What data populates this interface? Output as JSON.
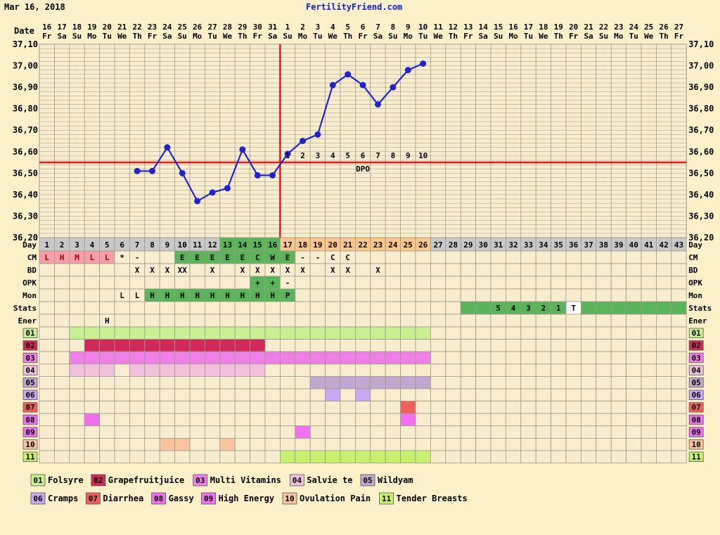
{
  "header": {
    "date": "Mar 16, 2018",
    "site": "FertilityFriend.com"
  },
  "rows": {
    "date_label": "Date",
    "day_label": "Day",
    "cm_label": "CM",
    "bd_label": "BD",
    "opk_label": "OPK",
    "mon_label": "Mon",
    "stats_label": "Stats",
    "ener_label": "Ener",
    "dpo_label": "DPO"
  },
  "colors": {
    "page_bg": "#fbf0c8",
    "cell_bg": "#f8edcf",
    "grid_line": "#9c9a88",
    "temp_line": "#2323cc",
    "coverline": "#e11a1a",
    "day_bg": "#c8c8c8",
    "fertile_green": "#5ab55a",
    "luteal_orange": "#f9c78e",
    "menses_pink": "#f5a0a8",
    "title_blue": "#1020d0"
  },
  "chart_data": {
    "type": "line",
    "title": "",
    "xlabel": "",
    "ylabel": "",
    "ylim": [
      36.2,
      37.1
    ],
    "y_ticks": [
      "37,10",
      "37,00",
      "36,90",
      "36,80",
      "36,70",
      "36,60",
      "36,50",
      "36,40",
      "36,30",
      "36,20"
    ],
    "coverline": 36.55,
    "ovulation_cycle_day": 16,
    "cycle_days": [
      1,
      2,
      3,
      4,
      5,
      6,
      7,
      8,
      9,
      10,
      11,
      12,
      13,
      14,
      15,
      16,
      17,
      18,
      19,
      20,
      21,
      22,
      23,
      24,
      25,
      26,
      27,
      28,
      29,
      30,
      31,
      32,
      33,
      34,
      35,
      36,
      37,
      38,
      39,
      40,
      41,
      42,
      43
    ],
    "date_numbers": [
      "16",
      "17",
      "18",
      "19",
      "20",
      "21",
      "22",
      "23",
      "24",
      "25",
      "26",
      "27",
      "28",
      "29",
      "30",
      "31",
      "1",
      "2",
      "3",
      "4",
      "5",
      "6",
      "7",
      "8",
      "9",
      "10",
      "11",
      "12",
      "13",
      "14",
      "15",
      "16",
      "17",
      "18",
      "19",
      "20",
      "21",
      "22",
      "23",
      "24",
      "25",
      "26",
      "27"
    ],
    "weekdays": [
      "Fr",
      "Sa",
      "Su",
      "Mo",
      "Tu",
      "We",
      "Th",
      "Fr",
      "Sa",
      "Su",
      "Mo",
      "Tu",
      "We",
      "Th",
      "Fr",
      "Sa",
      "Su",
      "Mo",
      "Tu",
      "We",
      "Th",
      "Fr",
      "Sa",
      "Su",
      "Mo",
      "Tu",
      "We",
      "Th",
      "Fr",
      "Sa",
      "Su",
      "Mo",
      "Tu",
      "We",
      "Th",
      "Fr",
      "Sa",
      "Su",
      "Mo",
      "Tu",
      "We",
      "Th",
      "Fr"
    ],
    "series": [
      {
        "temps": [
          {
            "day": 7,
            "temp": 36.51
          },
          {
            "day": 8,
            "temp": 36.51
          },
          {
            "day": 9,
            "temp": 36.62
          },
          {
            "day": 10,
            "temp": 36.5
          },
          {
            "day": 11,
            "temp": 36.37
          },
          {
            "day": 12,
            "temp": 36.41
          },
          {
            "day": 13,
            "temp": 36.43
          },
          {
            "day": 14,
            "temp": 36.61
          },
          {
            "day": 15,
            "temp": 36.49
          },
          {
            "day": 16,
            "temp": 36.49
          },
          {
            "day": 17,
            "temp": 36.59
          },
          {
            "day": 18,
            "temp": 36.65
          },
          {
            "day": 19,
            "temp": 36.68
          },
          {
            "day": 20,
            "temp": 36.91
          },
          {
            "day": 21,
            "temp": 36.96
          },
          {
            "day": 22,
            "temp": 36.91
          },
          {
            "day": 23,
            "temp": 36.82
          },
          {
            "day": 24,
            "temp": 36.9
          },
          {
            "day": 25,
            "temp": 36.98
          },
          {
            "day": 26,
            "temp": 37.01
          }
        ]
      }
    ],
    "dpo_numbers": [
      "1",
      "2",
      "3",
      "4",
      "5",
      "6",
      "7",
      "8",
      "9",
      "10"
    ],
    "cm": {
      "1": "L",
      "2": "H",
      "3": "M",
      "4": "L",
      "5": "L",
      "6": "*",
      "7": "-",
      "10": "E",
      "11": "E",
      "12": "E",
      "13": "E",
      "14": "E",
      "15": "C",
      "16": "W",
      "17": "E",
      "18": "-",
      "19": "-",
      "20": "C",
      "21": "C"
    },
    "bd": {
      "7": "X",
      "8": "X",
      "9": "X",
      "10": "XX",
      "12": "X",
      "14": "X",
      "15": "X",
      "16": "X",
      "17": "X",
      "18": "X",
      "20": "X",
      "21": "X",
      "23": "X"
    },
    "opk": {
      "15": "+",
      "16": "+",
      "17": "-"
    },
    "mon": {
      "6": "L",
      "7": "L",
      "8": "H",
      "9": "H",
      "10": "H",
      "11": "H",
      "12": "H",
      "13": "H",
      "14": "H",
      "15": "H",
      "16": "H",
      "17": "P"
    },
    "stats": {
      "31": "5",
      "32": "4",
      "33": "3",
      "34": "2",
      "35": "1",
      "36": "T"
    },
    "energy": {
      "5": "H"
    },
    "symptoms": [
      {
        "code": "01",
        "name": "Folsyre",
        "color": "#c8f090",
        "days": [
          3,
          26
        ]
      },
      {
        "code": "02",
        "name": "Grapefruitjuice",
        "color": "#d02858",
        "days": [
          4,
          15
        ]
      },
      {
        "code": "03",
        "name": "Multi Vitamins",
        "color": "#f080e8",
        "days": [
          3,
          26
        ]
      },
      {
        "code": "04",
        "name": "Salvie te",
        "color": "#f0c0dc",
        "ranges": [
          [
            3,
            5
          ],
          [
            7,
            15
          ]
        ]
      },
      {
        "code": "05",
        "name": "Wildyam",
        "color": "#c0a8d0",
        "days": [
          19,
          26
        ]
      },
      {
        "code": "06",
        "name": "Cramps",
        "color": "#c8a8f0",
        "ranges": [
          [
            20,
            20
          ],
          [
            22,
            22
          ]
        ]
      },
      {
        "code": "07",
        "name": "Diarrhea",
        "color": "#f06058",
        "ranges": [
          [
            25,
            25
          ]
        ]
      },
      {
        "code": "08",
        "name": "Gassy",
        "color": "#f070f0",
        "ranges": [
          [
            4,
            4
          ],
          [
            25,
            25
          ]
        ]
      },
      {
        "code": "09",
        "name": "High Energy",
        "color": "#f070f0",
        "ranges": [
          [
            18,
            18
          ]
        ]
      },
      {
        "code": "10",
        "name": "Ovulation Pain",
        "color": "#f8c4a0",
        "ranges": [
          [
            9,
            9
          ],
          [
            10,
            10
          ],
          [
            13,
            13
          ]
        ]
      },
      {
        "code": "11",
        "name": "Tender Breasts",
        "color": "#c8f070",
        "days": [
          17,
          26
        ]
      }
    ]
  }
}
